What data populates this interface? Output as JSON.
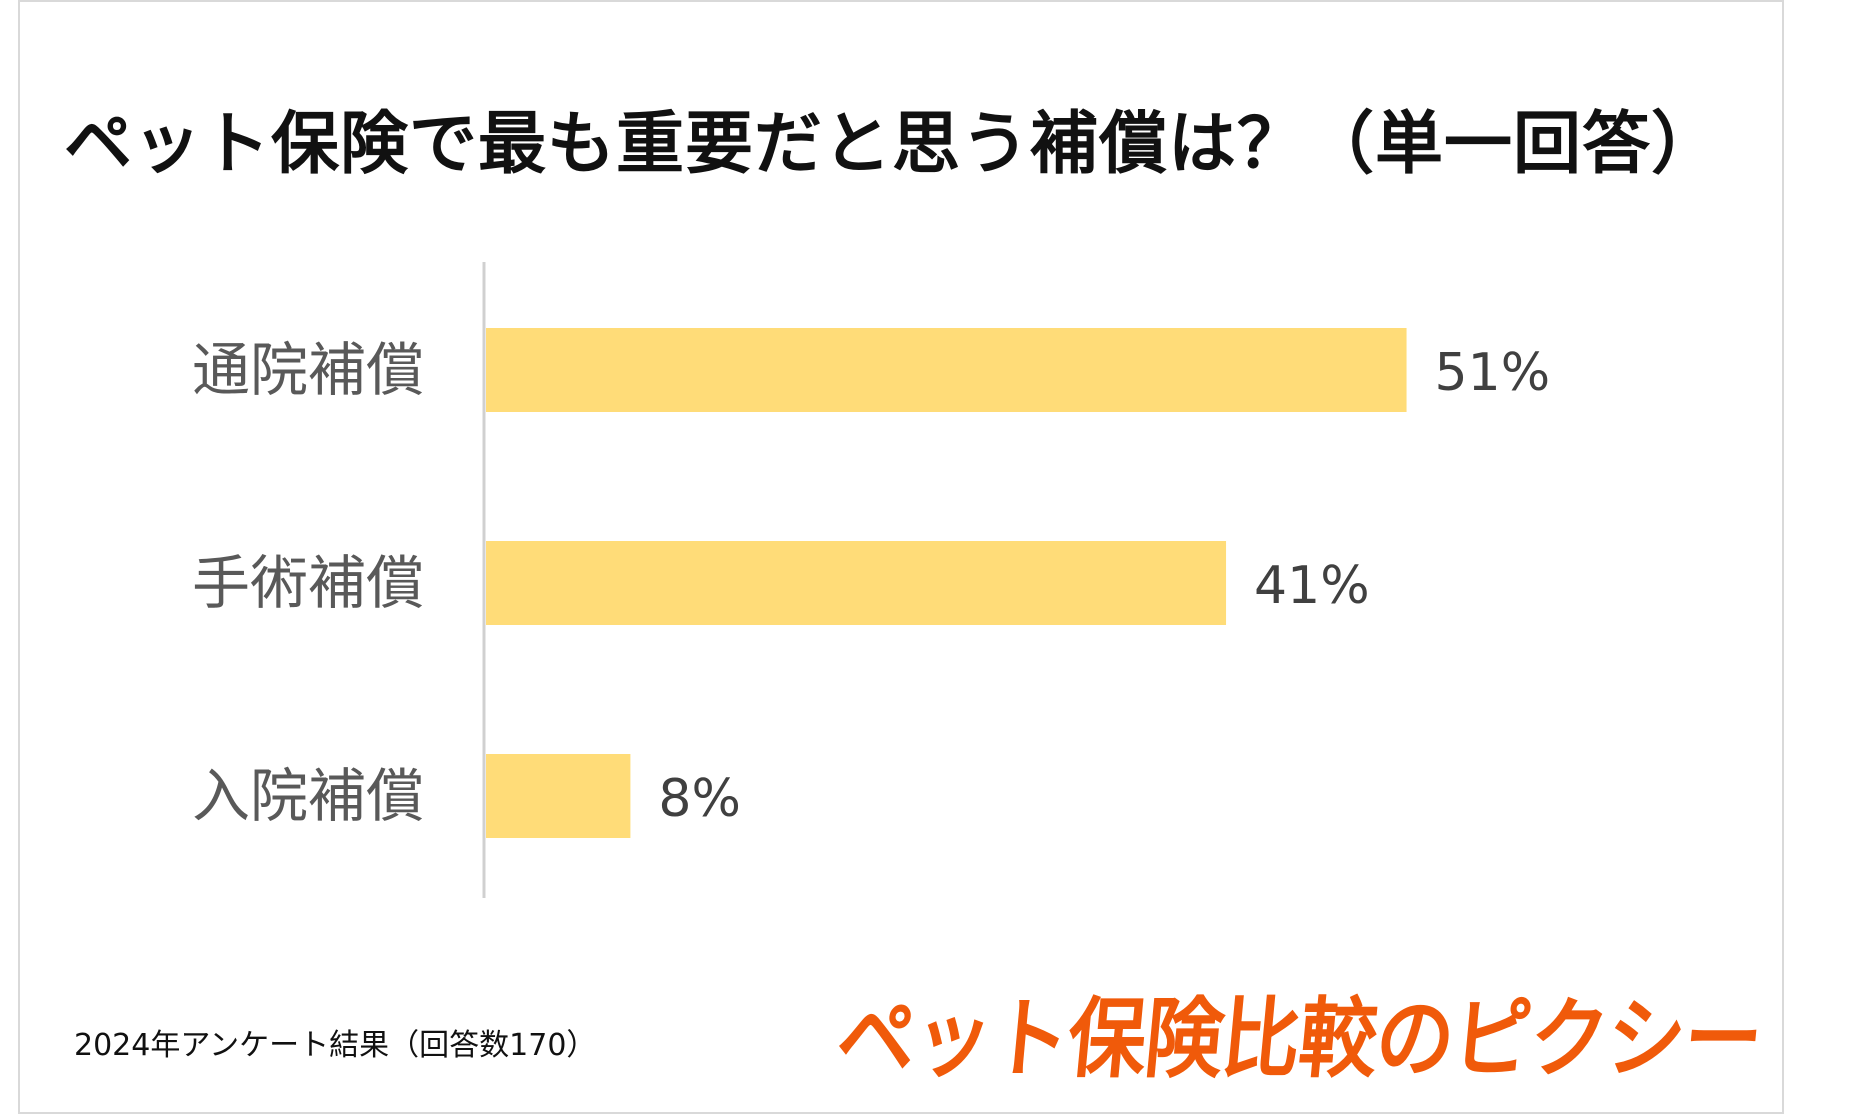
{
  "chart_data": {
    "type": "bar",
    "orientation": "horizontal",
    "title": "ペット保険で最も重要だと思う補償は？（単一回答）",
    "categories": [
      "通院補償",
      "手術補償",
      "入院補償"
    ],
    "values": [
      51,
      41,
      8
    ],
    "value_labels": [
      "51%",
      "41%",
      "8%"
    ],
    "unit": "%",
    "xlim": [
      0,
      80
    ],
    "grid": false,
    "legend": "none",
    "bar_color": "#ffdc78"
  },
  "footnote": "2024年アンケート結果（回答数170）",
  "brand": {
    "text": "ペット保険比較のピクシー",
    "color": "#f05a0a"
  }
}
